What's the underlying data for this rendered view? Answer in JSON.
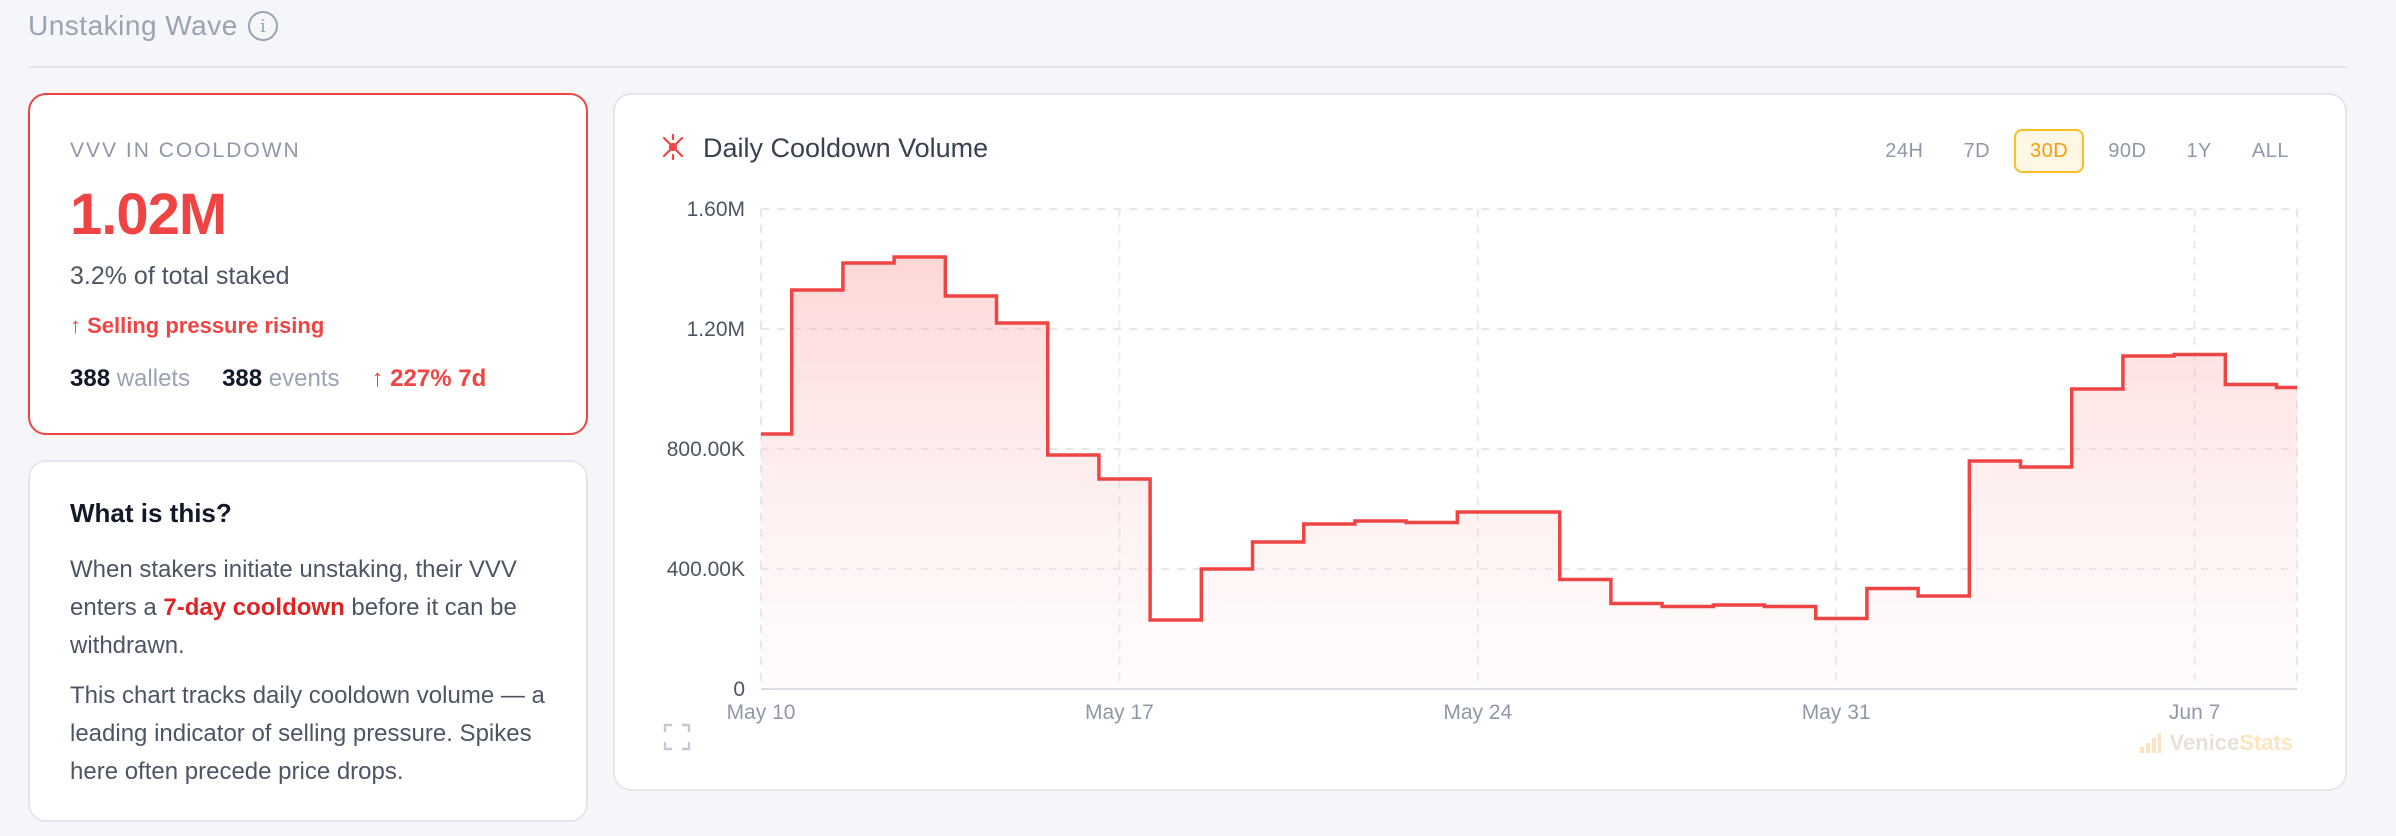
{
  "section": {
    "title": "Unstaking Wave",
    "info_icon": "i"
  },
  "stat_card": {
    "label": "VVV IN COOLDOWN",
    "value": "1.02M",
    "sub": "3.2% of total staked",
    "trend": "↑ Selling pressure rising",
    "wallets_count": "388",
    "wallets_label": "wallets",
    "events_count": "388",
    "events_label": "events",
    "change": "↑ 227% 7d"
  },
  "info_card": {
    "title": "What is this?",
    "p1_a": "When stakers initiate unstaking, their VVV enters a ",
    "p1_hl": "7-day cooldown",
    "p1_b": " before it can be withdrawn.",
    "p2": "This chart tracks daily cooldown volume — a leading indicator of selling pressure. Spikes here often precede price drops."
  },
  "chart_card": {
    "title": "Daily Cooldown Volume",
    "ranges": [
      "24H",
      "7D",
      "30D",
      "90D",
      "1Y",
      "ALL"
    ],
    "active_range": "30D",
    "watermark_a": "Venice",
    "watermark_b": "Stats"
  },
  "colors": {
    "accent": "#ef4444",
    "active": "#f59e0b"
  },
  "chart_data": {
    "type": "area",
    "title": "Daily Cooldown Volume",
    "xlabel": "",
    "ylabel": "",
    "ylim": [
      0,
      1600000
    ],
    "y_ticks": [
      0,
      400000,
      800000,
      1200000,
      1600000
    ],
    "y_tick_labels": [
      "0",
      "400.00K",
      "800.00K",
      "1.20M",
      "1.60M"
    ],
    "x_tick_labels": [
      "May 10",
      "May 17",
      "May 24",
      "May 31",
      "Jun 7"
    ],
    "x_tick_days": [
      0,
      7,
      14,
      21,
      28
    ],
    "xlim_days": [
      0,
      30
    ],
    "step": true,
    "grid": true,
    "series": [
      {
        "x_days": [
          0,
          0.6,
          1.6,
          2.6,
          3.6,
          4.6,
          5.6,
          6.6,
          7.6,
          8.6,
          9.6,
          10.6,
          11.6,
          12.6,
          13.6,
          14.6,
          15.6,
          16.6,
          17.6,
          18.6,
          19.6,
          20.6,
          21.6,
          22.6,
          23.6,
          24.6,
          25.6,
          26.6,
          27.6,
          28.6,
          29.6,
          30
        ],
        "values": [
          850000,
          1330000,
          1420000,
          1440000,
          1310000,
          1220000,
          780000,
          700000,
          230000,
          400000,
          490000,
          550000,
          560000,
          555000,
          590000,
          590000,
          365000,
          285000,
          275000,
          280000,
          275000,
          235000,
          335000,
          310000,
          760000,
          740000,
          1000000,
          1110000,
          1115000,
          1015000,
          1005000,
          1005000
        ]
      }
    ]
  }
}
